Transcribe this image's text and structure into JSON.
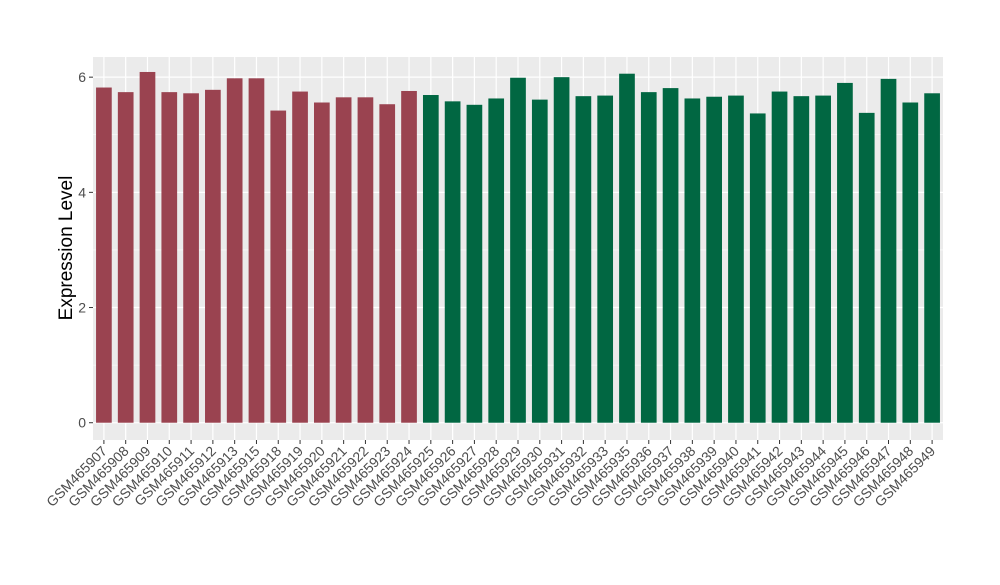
{
  "chart_data": {
    "type": "bar",
    "title": "",
    "xlabel": "",
    "ylabel": "Expression Level",
    "ylim": [
      -0.3,
      6.35
    ],
    "yticks": [
      0,
      2,
      4,
      6
    ],
    "grid": true,
    "legend": "none",
    "panel_background": "#ebebeb",
    "grid_color": "#ffffff",
    "categories": [
      "GSM465907",
      "GSM465908",
      "GSM465909",
      "GSM465910",
      "GSM465911",
      "GSM465912",
      "GSM465913",
      "GSM465915",
      "GSM465918",
      "GSM465919",
      "GSM465920",
      "GSM465921",
      "GSM465922",
      "GSM465923",
      "GSM465924",
      "GSM465925",
      "GSM465926",
      "GSM465927",
      "GSM465928",
      "GSM465929",
      "GSM465930",
      "GSM465931",
      "GSM465932",
      "GSM465933",
      "GSM465935",
      "GSM465936",
      "GSM465937",
      "GSM465938",
      "GSM465939",
      "GSM465940",
      "GSM465941",
      "GSM465942",
      "GSM465943",
      "GSM465944",
      "GSM465945",
      "GSM465946",
      "GSM465947",
      "GSM465948",
      "GSM465949"
    ],
    "values": [
      5.82,
      5.74,
      6.09,
      5.74,
      5.72,
      5.78,
      5.98,
      5.98,
      5.42,
      5.75,
      5.56,
      5.65,
      5.65,
      5.53,
      5.76,
      5.69,
      5.58,
      5.52,
      5.63,
      5.99,
      5.61,
      6.0,
      5.67,
      5.68,
      6.06,
      5.74,
      5.81,
      5.63,
      5.66,
      5.68,
      5.37,
      5.75,
      5.67,
      5.68,
      5.9,
      5.38,
      5.97,
      5.56,
      5.72
    ],
    "groups": [
      "g1",
      "g1",
      "g1",
      "g1",
      "g1",
      "g1",
      "g1",
      "g1",
      "g1",
      "g1",
      "g1",
      "g1",
      "g1",
      "g1",
      "g1",
      "g2",
      "g2",
      "g2",
      "g2",
      "g2",
      "g2",
      "g2",
      "g2",
      "g2",
      "g2",
      "g2",
      "g2",
      "g2",
      "g2",
      "g2",
      "g2",
      "g2",
      "g2",
      "g2",
      "g2",
      "g2",
      "g2",
      "g2",
      "g2"
    ],
    "group_colors": {
      "g1": "#9a4350",
      "g2": "#016742"
    }
  }
}
